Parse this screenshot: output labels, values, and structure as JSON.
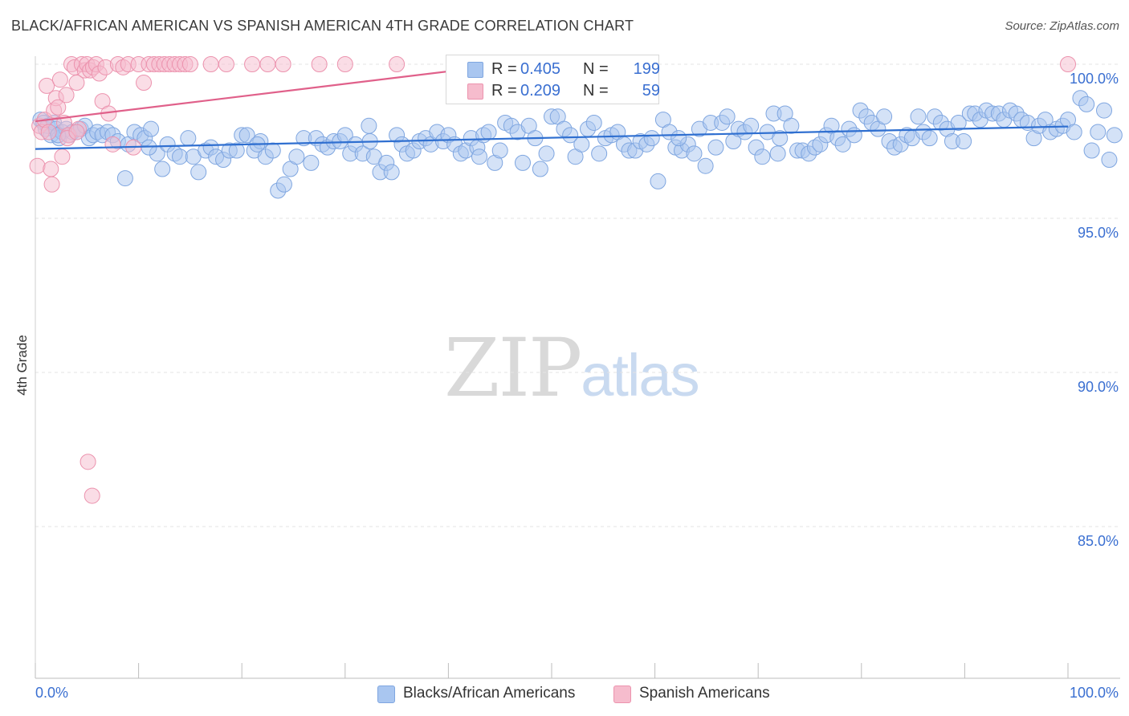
{
  "header": {
    "title": "BLACK/AFRICAN AMERICAN VS SPANISH AMERICAN 4TH GRADE CORRELATION CHART",
    "source": "Source: ZipAtlas.com"
  },
  "watermark": {
    "zip": "ZIP",
    "atlas": "atlas"
  },
  "legend": {
    "rows": [
      {
        "r_label": "R =",
        "r_value": "0.405",
        "n_label": "N =",
        "n_value": "199",
        "color": "#a9c6f0",
        "border": "#7fa6e0"
      },
      {
        "r_label": "R =",
        "r_value": "0.209",
        "n_label": "N =",
        "n_value": "59",
        "color": "#f6bccd",
        "border": "#ec93ae"
      }
    ]
  },
  "bottom_legend": [
    {
      "label": "Blacks/African Americans",
      "color": "#a9c6f0",
      "border": "#7fa6e0"
    },
    {
      "label": "Spanish Americans",
      "color": "#f6bccd",
      "border": "#ec93ae"
    }
  ],
  "chart_data": {
    "type": "scatter",
    "title": "BLACK/AFRICAN AMERICAN VS SPANISH AMERICAN 4TH GRADE CORRELATION CHART",
    "xlabel": "",
    "ylabel": "4th Grade",
    "xlim": [
      0,
      100
    ],
    "ylim": [
      80,
      100.5
    ],
    "x_tick_labels": [
      "0.0%",
      "100.0%"
    ],
    "y_ticks": [
      85,
      90,
      95,
      100
    ],
    "y_tick_labels": [
      "85.0%",
      "90.0%",
      "95.0%",
      "100.0%"
    ],
    "grid": true,
    "legend_position": "top-center",
    "series": [
      {
        "name": "Blacks/African Americans",
        "color": "#a9c6f0",
        "stroke": "#7fa6e0",
        "trend": {
          "x": [
            0,
            100
          ],
          "y": [
            97.25,
            97.98
          ],
          "color": "#2f6fd0"
        },
        "points": [
          [
            0.5,
            98.2
          ],
          [
            0.8,
            98.1
          ],
          [
            1.0,
            97.9
          ],
          [
            1.2,
            98.0
          ],
          [
            1.5,
            97.7
          ],
          [
            1.8,
            98.1
          ],
          [
            2.0,
            97.9
          ],
          [
            2.3,
            97.6
          ],
          [
            2.6,
            97.8
          ],
          [
            3.0,
            97.9
          ],
          [
            3.3,
            97.7
          ],
          [
            3.6,
            97.8
          ],
          [
            4.0,
            97.8
          ],
          [
            4.4,
            97.9
          ],
          [
            4.8,
            98.0
          ],
          [
            5.2,
            97.6
          ],
          [
            5.6,
            97.7
          ],
          [
            6.0,
            97.8
          ],
          [
            6.5,
            97.7
          ],
          [
            7.0,
            97.8
          ],
          [
            7.5,
            97.7
          ],
          [
            8.0,
            97.5
          ],
          [
            8.7,
            96.3
          ],
          [
            9.0,
            97.4
          ],
          [
            9.6,
            97.8
          ],
          [
            10.2,
            97.7
          ],
          [
            10.6,
            97.6
          ],
          [
            11.2,
            97.9
          ],
          [
            11.8,
            97.1
          ],
          [
            12.3,
            96.6
          ],
          [
            12.8,
            97.4
          ],
          [
            13.5,
            97.1
          ],
          [
            14.0,
            97.0
          ],
          [
            14.8,
            97.6
          ],
          [
            15.3,
            97.0
          ],
          [
            15.8,
            96.5
          ],
          [
            16.5,
            97.2
          ],
          [
            17.0,
            97.3
          ],
          [
            17.5,
            97.0
          ],
          [
            18.2,
            96.9
          ],
          [
            18.8,
            97.2
          ],
          [
            19.5,
            97.2
          ],
          [
            20.0,
            97.7
          ],
          [
            20.5,
            97.7
          ],
          [
            21.2,
            97.2
          ],
          [
            21.8,
            97.5
          ],
          [
            22.3,
            97.0
          ],
          [
            23.0,
            97.2
          ],
          [
            23.5,
            95.9
          ],
          [
            24.1,
            96.1
          ],
          [
            24.7,
            96.6
          ],
          [
            25.3,
            97.0
          ],
          [
            26.0,
            97.6
          ],
          [
            26.7,
            96.8
          ],
          [
            27.2,
            97.6
          ],
          [
            27.8,
            97.4
          ],
          [
            28.3,
            97.3
          ],
          [
            28.9,
            97.5
          ],
          [
            29.5,
            97.5
          ],
          [
            30.0,
            97.7
          ],
          [
            30.5,
            97.1
          ],
          [
            31.0,
            97.4
          ],
          [
            31.7,
            97.1
          ],
          [
            32.3,
            98.0
          ],
          [
            32.8,
            97.0
          ],
          [
            33.4,
            96.5
          ],
          [
            34.0,
            96.8
          ],
          [
            34.5,
            96.5
          ],
          [
            35.0,
            97.7
          ],
          [
            35.5,
            97.4
          ],
          [
            36.0,
            97.1
          ],
          [
            36.6,
            97.2
          ],
          [
            37.2,
            97.5
          ],
          [
            37.8,
            97.6
          ],
          [
            38.3,
            97.4
          ],
          [
            38.9,
            97.8
          ],
          [
            39.5,
            97.5
          ],
          [
            40.0,
            97.7
          ],
          [
            40.6,
            97.4
          ],
          [
            41.2,
            97.1
          ],
          [
            41.7,
            97.2
          ],
          [
            42.2,
            97.6
          ],
          [
            42.8,
            97.3
          ],
          [
            43.4,
            97.7
          ],
          [
            43.9,
            97.8
          ],
          [
            44.5,
            96.8
          ],
          [
            45.0,
            97.2
          ],
          [
            45.5,
            98.1
          ],
          [
            46.1,
            98.0
          ],
          [
            46.7,
            97.8
          ],
          [
            47.2,
            96.8
          ],
          [
            47.8,
            98.0
          ],
          [
            48.4,
            97.6
          ],
          [
            48.9,
            96.6
          ],
          [
            49.5,
            97.1
          ],
          [
            50.0,
            98.3
          ],
          [
            50.6,
            98.3
          ],
          [
            51.2,
            97.9
          ],
          [
            51.8,
            97.7
          ],
          [
            52.3,
            97.0
          ],
          [
            52.9,
            97.4
          ],
          [
            53.5,
            97.9
          ],
          [
            54.1,
            98.1
          ],
          [
            54.6,
            97.1
          ],
          [
            55.2,
            97.6
          ],
          [
            55.8,
            97.7
          ],
          [
            56.4,
            97.8
          ],
          [
            57.0,
            97.4
          ],
          [
            57.5,
            97.2
          ],
          [
            58.1,
            97.2
          ],
          [
            58.6,
            97.5
          ],
          [
            59.2,
            97.4
          ],
          [
            59.7,
            97.6
          ],
          [
            60.3,
            96.2
          ],
          [
            60.8,
            98.2
          ],
          [
            61.4,
            97.8
          ],
          [
            62.0,
            97.3
          ],
          [
            62.6,
            97.2
          ],
          [
            63.2,
            97.4
          ],
          [
            63.8,
            97.1
          ],
          [
            64.3,
            97.9
          ],
          [
            64.9,
            96.7
          ],
          [
            65.4,
            98.1
          ],
          [
            65.9,
            97.3
          ],
          [
            66.5,
            98.1
          ],
          [
            67.0,
            98.3
          ],
          [
            67.6,
            97.5
          ],
          [
            68.1,
            97.9
          ],
          [
            68.7,
            97.8
          ],
          [
            69.3,
            98.0
          ],
          [
            69.8,
            97.3
          ],
          [
            70.4,
            97.0
          ],
          [
            70.9,
            97.8
          ],
          [
            71.5,
            98.4
          ],
          [
            72.1,
            97.6
          ],
          [
            72.6,
            98.4
          ],
          [
            73.2,
            98.0
          ],
          [
            73.8,
            97.2
          ],
          [
            74.3,
            97.2
          ],
          [
            74.9,
            97.1
          ],
          [
            75.5,
            97.3
          ],
          [
            76.0,
            97.4
          ],
          [
            76.6,
            97.7
          ],
          [
            77.1,
            98.0
          ],
          [
            77.7,
            97.6
          ],
          [
            78.2,
            97.4
          ],
          [
            78.8,
            97.9
          ],
          [
            79.3,
            97.7
          ],
          [
            79.9,
            98.5
          ],
          [
            80.5,
            98.3
          ],
          [
            81.0,
            98.1
          ],
          [
            81.6,
            97.9
          ],
          [
            82.2,
            98.3
          ],
          [
            82.7,
            97.5
          ],
          [
            83.2,
            97.3
          ],
          [
            83.8,
            97.4
          ],
          [
            84.4,
            97.7
          ],
          [
            84.9,
            97.6
          ],
          [
            85.5,
            98.3
          ],
          [
            86.0,
            97.8
          ],
          [
            86.6,
            97.6
          ],
          [
            87.1,
            98.3
          ],
          [
            87.7,
            98.1
          ],
          [
            88.3,
            97.9
          ],
          [
            88.8,
            97.5
          ],
          [
            89.4,
            98.1
          ],
          [
            89.9,
            97.5
          ],
          [
            90.5,
            98.4
          ],
          [
            91.0,
            98.4
          ],
          [
            91.5,
            98.2
          ],
          [
            92.1,
            98.5
          ],
          [
            92.7,
            98.4
          ],
          [
            93.3,
            98.4
          ],
          [
            93.8,
            98.2
          ],
          [
            94.4,
            98.5
          ],
          [
            95.0,
            98.4
          ],
          [
            95.5,
            98.2
          ],
          [
            96.1,
            98.1
          ],
          [
            96.7,
            97.6
          ],
          [
            97.2,
            98.0
          ],
          [
            97.8,
            98.2
          ],
          [
            98.3,
            97.8
          ],
          [
            98.9,
            97.9
          ],
          [
            99.5,
            98.0
          ],
          [
            100.0,
            98.2
          ],
          [
            100.6,
            97.8
          ],
          [
            101.2,
            98.9
          ],
          [
            101.8,
            98.7
          ],
          [
            102.3,
            97.2
          ],
          [
            102.9,
            97.8
          ],
          [
            103.5,
            98.5
          ],
          [
            104.0,
            96.9
          ],
          [
            104.5,
            97.7
          ],
          [
            71.9,
            97.1
          ],
          [
            62.3,
            97.6
          ],
          [
            43.0,
            97.0
          ],
          [
            32.4,
            97.5
          ],
          [
            21.5,
            97.4
          ],
          [
            11.0,
            97.3
          ],
          [
            2.2,
            97.7
          ]
        ]
      },
      {
        "name": "Spanish Americans",
        "color": "#f6bccd",
        "stroke": "#ec93ae",
        "trend": {
          "x": [
            0,
            44.5
          ],
          "y": [
            98.15,
            99.95
          ],
          "color": "#e0608a"
        },
        "points": [
          [
            0.2,
            96.7
          ],
          [
            0.4,
            98.0
          ],
          [
            0.6,
            97.8
          ],
          [
            0.9,
            98.2
          ],
          [
            1.1,
            99.3
          ],
          [
            1.3,
            97.8
          ],
          [
            1.5,
            96.6
          ],
          [
            1.6,
            96.1
          ],
          [
            1.8,
            98.5
          ],
          [
            2.0,
            98.9
          ],
          [
            2.2,
            98.6
          ],
          [
            2.4,
            99.5
          ],
          [
            2.6,
            97.0
          ],
          [
            2.8,
            98.1
          ],
          [
            3.0,
            99.0
          ],
          [
            3.2,
            97.7
          ],
          [
            3.5,
            100.0
          ],
          [
            3.8,
            99.9
          ],
          [
            4.0,
            99.4
          ],
          [
            4.2,
            97.9
          ],
          [
            4.5,
            100.0
          ],
          [
            4.8,
            99.8
          ],
          [
            5.0,
            100.0
          ],
          [
            5.3,
            99.8
          ],
          [
            5.6,
            99.9
          ],
          [
            5.9,
            100.0
          ],
          [
            6.2,
            99.7
          ],
          [
            6.5,
            98.8
          ],
          [
            6.8,
            99.9
          ],
          [
            7.1,
            98.4
          ],
          [
            7.5,
            97.4
          ],
          [
            8.0,
            100.0
          ],
          [
            8.5,
            99.9
          ],
          [
            9.0,
            100.0
          ],
          [
            9.5,
            97.3
          ],
          [
            10.0,
            100.0
          ],
          [
            10.5,
            99.4
          ],
          [
            11.0,
            100.0
          ],
          [
            11.5,
            100.0
          ],
          [
            12.0,
            100.0
          ],
          [
            12.5,
            100.0
          ],
          [
            13.0,
            100.0
          ],
          [
            13.5,
            100.0
          ],
          [
            14.0,
            100.0
          ],
          [
            14.5,
            100.0
          ],
          [
            15.0,
            100.0
          ],
          [
            17.0,
            100.0
          ],
          [
            18.5,
            100.0
          ],
          [
            21.0,
            100.0
          ],
          [
            22.5,
            100.0
          ],
          [
            24.0,
            100.0
          ],
          [
            27.5,
            100.0
          ],
          [
            30.0,
            100.0
          ],
          [
            35.0,
            100.0
          ],
          [
            5.1,
            87.1
          ],
          [
            5.5,
            86.0
          ],
          [
            3.1,
            97.6
          ],
          [
            4.0,
            97.8
          ],
          [
            100.0,
            100.0
          ]
        ]
      }
    ]
  }
}
